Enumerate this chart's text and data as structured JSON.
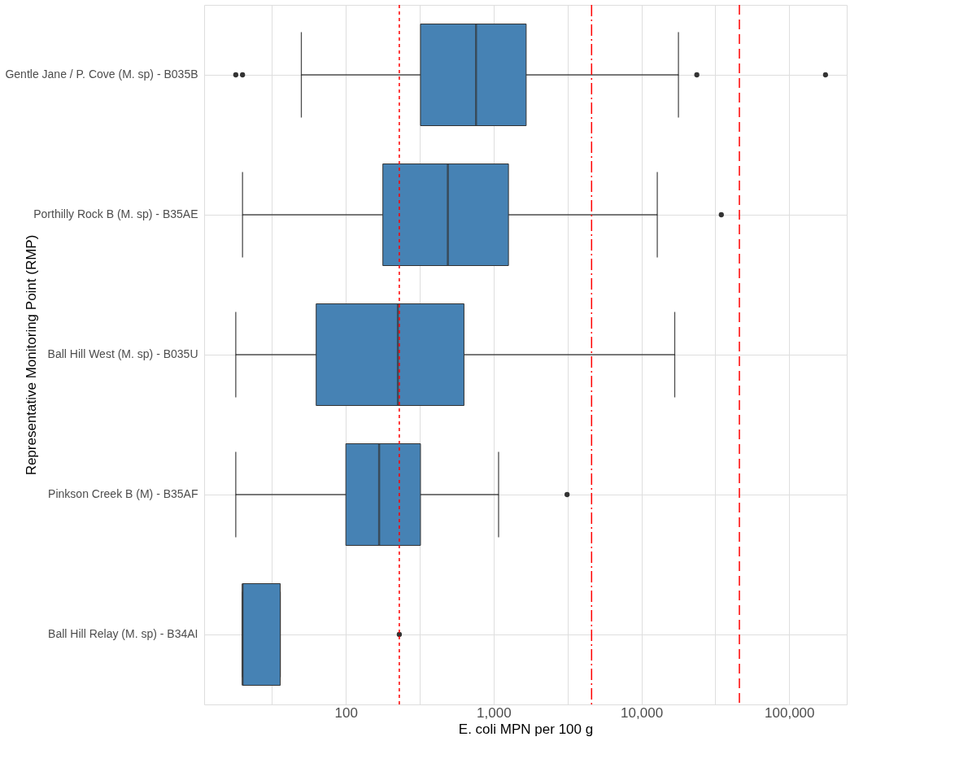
{
  "chart_data": {
    "type": "box",
    "orientation": "horizontal",
    "log": "x",
    "xlabel": "E. coli MPN per 100 g",
    "ylabel": "Representative Monitoring Point (RMP)",
    "categories": [
      "Gentle Jane / P. Cove (M. sp) - B035B",
      "Porthilly Rock B (M. sp) - B35AE",
      "Ball Hill West (M. sp) - B035U",
      "Pinkson Creek B (M) - B35AF",
      "Ball Hill Relay (M. sp) - B34AI"
    ],
    "series": [
      {
        "color": "#4682b4",
        "boxes": [
          {
            "low": 50,
            "q1": 320,
            "median": 760,
            "q3": 1660,
            "high": 17800,
            "outliers": [
              18,
              20,
              23700,
              176000
            ]
          },
          {
            "low": 20,
            "q1": 178,
            "median": 490,
            "q3": 1260,
            "high": 12800,
            "outliers": [
              34700
            ]
          },
          {
            "low": 18,
            "q1": 63,
            "median": 225,
            "q3": 630,
            "high": 16800
          },
          {
            "low": 18,
            "q1": 100,
            "median": 168,
            "q3": 320,
            "high": 1080,
            "outliers": [
              3140
            ]
          },
          {
            "low": 20,
            "q1": 20,
            "median": 20,
            "q3": 36,
            "high": 36,
            "outliers": [
              230
            ]
          }
        ]
      }
    ],
    "xlim": [
      11,
      245000
    ],
    "xticks": [
      {
        "value": 31.6,
        "label": null
      },
      100,
      {
        "value": 316,
        "label": null
      },
      {
        "value": 1000,
        "label": "1,000"
      },
      {
        "value": 3160,
        "label": null
      },
      {
        "value": 10000,
        "label": "10,000"
      },
      {
        "value": 31600,
        "label": null
      },
      {
        "value": 100000,
        "label": "100,000"
      }
    ],
    "ref_lines": [
      {
        "axis": "x",
        "value": 230,
        "color": "#ff0000",
        "line_style": "dotted"
      },
      {
        "axis": "x",
        "value": 4600,
        "color": "#ff0000",
        "line_style": "dashdot"
      },
      {
        "axis": "x",
        "value": 46000,
        "color": "#ff0000",
        "line_style": "dashed"
      }
    ],
    "grid": true
  }
}
